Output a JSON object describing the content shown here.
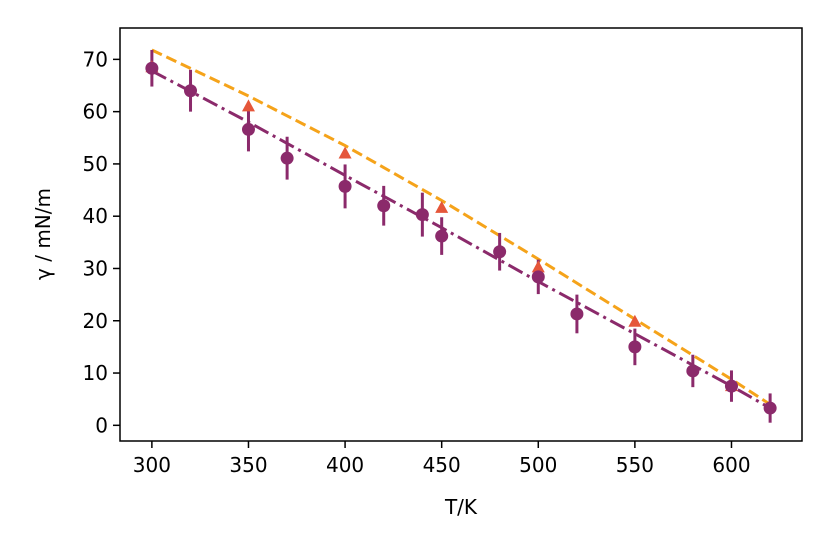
{
  "chart_data": {
    "type": "scatter",
    "xlabel": "T/K",
    "ylabel": "γ / mN/m",
    "xlim": [
      283.5,
      636.5
    ],
    "ylim": [
      -3,
      76
    ],
    "xticks": [
      300,
      350,
      400,
      450,
      500,
      550,
      600
    ],
    "yticks": [
      0,
      10,
      20,
      30,
      40,
      50,
      60,
      70
    ],
    "grid": false,
    "colors": {
      "purple": "#8b2a6b",
      "triangle": "#e5563a",
      "dashed": "#f5a31a"
    },
    "series": [
      {
        "style": "points-with-errorbars",
        "marker": "circle",
        "color": "#8b2a6b",
        "x": [
          300,
          320,
          350,
          370,
          400,
          420,
          440,
          450,
          480,
          500,
          520,
          550,
          580,
          600,
          620
        ],
        "y": [
          68.3,
          64.0,
          56.6,
          51.1,
          45.7,
          42.0,
          40.3,
          36.2,
          33.2,
          28.4,
          21.3,
          15.0,
          10.4,
          7.5,
          3.3
        ],
        "yerr": [
          3.5,
          4.0,
          4.2,
          4.1,
          4.2,
          3.8,
          4.2,
          3.6,
          3.6,
          3.3,
          3.7,
          3.5,
          3.1,
          3.0,
          2.8
        ]
      },
      {
        "style": "markers",
        "marker": "triangle",
        "color": "#e5563a",
        "x": [
          300,
          350,
          400,
          450,
          500,
          550,
          600
        ],
        "y": [
          68.5,
          61.0,
          52.0,
          41.6,
          30.2,
          19.8,
          7.5
        ]
      },
      {
        "style": "dashed-line",
        "color": "#f5a31a",
        "x": [
          300,
          350,
          400,
          450,
          500,
          550,
          600,
          620
        ],
        "y": [
          71.8,
          63.0,
          53.5,
          43.0,
          31.8,
          20.3,
          8.8,
          4.0
        ]
      },
      {
        "style": "dashdot-line",
        "color": "#8b2a6b",
        "x": [
          300,
          350,
          400,
          450,
          500,
          550,
          600,
          620
        ],
        "y": [
          67.8,
          58.0,
          47.8,
          37.8,
          27.5,
          17.5,
          7.5,
          3.3
        ]
      }
    ]
  }
}
